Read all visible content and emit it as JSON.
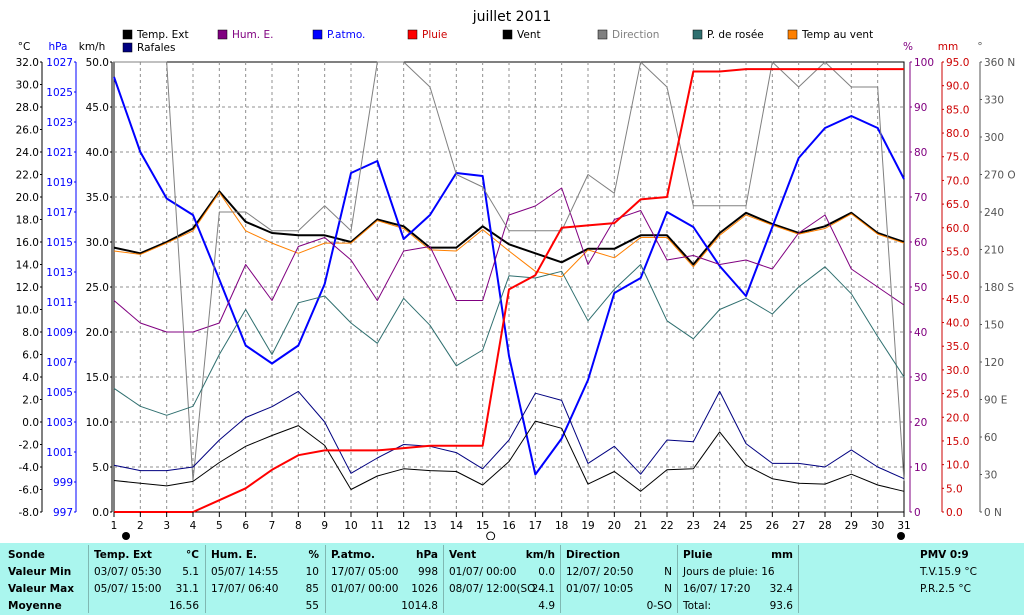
{
  "chart_data": {
    "type": "line",
    "title": "juillet 2011",
    "x": [
      1,
      2,
      3,
      4,
      5,
      6,
      7,
      8,
      9,
      10,
      11,
      12,
      13,
      14,
      15,
      16,
      17,
      18,
      19,
      20,
      21,
      22,
      23,
      24,
      25,
      26,
      27,
      28,
      29,
      30,
      31
    ],
    "x_ticks": [
      "1",
      "2",
      "3",
      "4",
      "5",
      "6",
      "7",
      "8",
      "9",
      "10",
      "11",
      "12",
      "13",
      "14",
      "15",
      "16",
      "17",
      "18",
      "19",
      "20",
      "21",
      "22",
      "23",
      "24",
      "25",
      "26",
      "27",
      "28",
      "29",
      "30",
      "31"
    ],
    "axes": {
      "temp": {
        "label": "°C",
        "range": [
          -8,
          32
        ],
        "ticks": [
          "32.0",
          "30.0",
          "28.0",
          "26.0",
          "24.0",
          "22.0",
          "20.0",
          "18.0",
          "16.0",
          "14.0",
          "12.0",
          "10.0",
          "8.0",
          "6.0",
          "4.0",
          "2.0",
          "0.0",
          "-2.0",
          "-4.0",
          "-6.0",
          "-8.0"
        ]
      },
      "pressure": {
        "label": "hPa",
        "range": [
          997,
          1027
        ],
        "ticks": [
          "1027",
          "1025",
          "1023",
          "1021",
          "1019",
          "1017",
          "1015",
          "1013",
          "1011",
          "1009",
          "1007",
          "1005",
          "1003",
          "1001",
          "999",
          "997"
        ]
      },
      "wind": {
        "label": "km/h",
        "range": [
          0,
          50
        ],
        "ticks": [
          "50.0",
          "45.0",
          "40.0",
          "35.0",
          "30.0",
          "25.0",
          "20.0",
          "15.0",
          "10.0",
          "5.0",
          "0.0"
        ]
      },
      "humidity": {
        "label": "%",
        "range": [
          0,
          100
        ],
        "ticks": [
          "100",
          "90",
          "80",
          "70",
          "60",
          "50",
          "40",
          "30",
          "20",
          "10",
          "0"
        ]
      },
      "rain": {
        "label": "mm",
        "range": [
          0,
          95
        ],
        "ticks": [
          "95.0",
          "90.0",
          "85.0",
          "80.0",
          "75.0",
          "70.0",
          "65.0",
          "60.0",
          "55.0",
          "50.0",
          "45.0",
          "40.0",
          "35.0",
          "30.0",
          "25.0",
          "20.0",
          "15.0",
          "10.0",
          "5.0",
          "0.0"
        ]
      },
      "direction": {
        "label": "°",
        "range": [
          0,
          360
        ],
        "ticks": [
          "360 N",
          "330",
          "300",
          "270 O",
          "240",
          "210",
          "180 S",
          "150",
          "120",
          "90 E",
          "60",
          "30",
          "0 N"
        ]
      }
    },
    "legend": [
      {
        "name": "Temp. Ext",
        "color": "#000000"
      },
      {
        "name": "Hum. E.",
        "color": "#800080"
      },
      {
        "name": "P.atmo.",
        "color": "#0000ff"
      },
      {
        "name": "Pluie",
        "color": "#ff0000"
      },
      {
        "name": "Vent",
        "color": "#000000"
      },
      {
        "name": "Direction",
        "color": "#808080"
      },
      {
        "name": "P. de rosée",
        "color": "#2f6f6f"
      },
      {
        "name": "Temp au vent",
        "color": "#ff8000"
      },
      {
        "name": "Rafales",
        "color": "#000080"
      }
    ],
    "series": [
      {
        "name": "Temp. Ext",
        "axis": "temp",
        "color": "#000000",
        "width": 2,
        "values": [
          15.5,
          15.0,
          16.0,
          17.2,
          20.5,
          17.8,
          16.8,
          16.6,
          16.6,
          16.0,
          18.0,
          17.4,
          15.5,
          15.5,
          17.4,
          15.8,
          15.0,
          14.2,
          15.4,
          15.4,
          16.6,
          16.6,
          14.0,
          16.8,
          18.6,
          17.6,
          16.8,
          17.4,
          18.6,
          16.8,
          16.0
        ]
      },
      {
        "name": "Temp au vent",
        "axis": "temp",
        "color": "#ff8000",
        "width": 1,
        "values": [
          15.2,
          14.9,
          15.9,
          17.0,
          20.4,
          17.0,
          15.9,
          15.0,
          15.9,
          15.9,
          17.9,
          17.2,
          15.3,
          15.2,
          17.1,
          15.2,
          13.4,
          12.9,
          15.3,
          14.6,
          16.4,
          16.4,
          13.8,
          16.6,
          18.4,
          17.5,
          16.7,
          17.2,
          18.5,
          16.7,
          15.9
        ]
      },
      {
        "name": "P.atmo.",
        "axis": "pressure",
        "color": "#0000ff",
        "width": 2,
        "values": [
          1026.0,
          1021.0,
          1017.9,
          1016.8,
          1012.5,
          1008.1,
          1006.9,
          1008.1,
          1012.2,
          1019.6,
          1020.4,
          1015.2,
          1016.8,
          1019.6,
          1019.4,
          1007.4,
          999.5,
          1001.9,
          1005.8,
          1011.6,
          1012.6,
          1017.0,
          1016.0,
          1013.4,
          1011.4,
          1016.0,
          1020.6,
          1022.6,
          1023.4,
          1022.6,
          1019.2
        ]
      },
      {
        "name": "Hum. E.",
        "axis": "humidity",
        "color": "#800080",
        "width": 1,
        "values": [
          47,
          42,
          40,
          40,
          42,
          55,
          47,
          59,
          61,
          56,
          47,
          58,
          59,
          47,
          47,
          66,
          68,
          72,
          55,
          65,
          67,
          56,
          57,
          55,
          56,
          54,
          62,
          66,
          54,
          50,
          46
        ]
      },
      {
        "name": "Direction",
        "axis": "direction",
        "color": "#808080",
        "width": 1,
        "values": [
          360,
          360,
          360,
          25,
          240,
          240,
          225,
          225,
          245,
          225,
          360,
          360,
          340,
          270,
          260,
          225,
          225,
          225,
          270,
          255,
          360,
          340,
          245,
          245,
          245,
          360,
          340,
          360,
          340,
          340,
          25
        ]
      },
      {
        "name": "P. de rosée",
        "axis": "temp",
        "color": "#2f6f6f",
        "width": 1,
        "values": [
          3.0,
          1.4,
          0.6,
          1.4,
          6.0,
          10.0,
          6.0,
          10.6,
          11.2,
          8.8,
          7.0,
          11.0,
          8.6,
          5.0,
          6.4,
          13.0,
          12.8,
          13.4,
          9.0,
          11.8,
          14.0,
          9.0,
          7.4,
          10.0,
          11.0,
          9.6,
          12.0,
          13.8,
          11.4,
          7.6,
          4.0
        ]
      },
      {
        "name": "Rafales",
        "axis": "wind",
        "color": "#000080",
        "width": 1,
        "values": [
          5.2,
          4.6,
          4.6,
          5.0,
          8.0,
          10.5,
          11.7,
          13.4,
          10.0,
          4.3,
          6.0,
          7.5,
          7.3,
          6.6,
          4.8,
          8.0,
          13.2,
          12.4,
          5.4,
          7.3,
          4.2,
          8.0,
          7.8,
          13.4,
          7.6,
          5.4,
          5.4,
          5.0,
          6.9,
          5.0,
          3.7
        ]
      },
      {
        "name": "Vent",
        "axis": "wind",
        "color": "#000000",
        "width": 1,
        "values": [
          3.5,
          3.2,
          2.9,
          3.4,
          5.5,
          7.3,
          8.5,
          9.6,
          7.4,
          2.5,
          4.0,
          4.8,
          4.6,
          4.5,
          3.0,
          5.6,
          10.1,
          9.3,
          3.1,
          4.5,
          2.3,
          4.7,
          4.8,
          8.9,
          5.2,
          3.7,
          3.2,
          3.1,
          4.2,
          3.0,
          2.3
        ]
      },
      {
        "name": "Pluie",
        "axis": "rain",
        "color": "#ff0000",
        "width": 2,
        "values": [
          0,
          0,
          0,
          0,
          2.5,
          5.0,
          8.9,
          12.0,
          13.0,
          13.0,
          13.0,
          13.5,
          14.0,
          14.0,
          14.0,
          47.0,
          50.0,
          60.0,
          60.5,
          61.0,
          66.0,
          66.5,
          93.0,
          93.0,
          93.5,
          93.5,
          93.5,
          93.5,
          93.5,
          93.5,
          93.5
        ]
      }
    ]
  },
  "footer": {
    "sonde": {
      "title": "Sonde",
      "rows": [
        "Valeur Min",
        "Valeur Max",
        "Moyenne"
      ]
    },
    "temp": {
      "title": "Temp. Ext",
      "unit": "°C",
      "min_date": "03/07/  05:30",
      "min_val": "5.1",
      "max_date": "05/07/  15:00",
      "max_val": "31.1",
      "avg": "16.56"
    },
    "hum": {
      "title": "Hum. E.",
      "unit": "%",
      "min_date": "05/07/  14:55",
      "min_val": "10",
      "max_date": "17/07/  06:40",
      "max_val": "85",
      "avg": "55"
    },
    "press": {
      "title": "P.atmo.",
      "unit": "hPa",
      "min_date": "17/07/  05:00",
      "min_val": "998",
      "max_date": "01/07/  00:00",
      "max_val": "1026",
      "avg": "1014.8"
    },
    "vent": {
      "title": "Vent",
      "unit": "km/h",
      "min_date": "01/07/  00:00",
      "min_val": "0.0",
      "max_date": "08/07/  12:00(SO",
      "max_val": "24.1",
      "avg": "4.9"
    },
    "direction": {
      "title": "Direction",
      "min_date": "12/07/  20:50",
      "min_val": "N",
      "max_date": "01/07/  10:05",
      "max_val": "N",
      "avg": "0-SO"
    },
    "pluie": {
      "title": "Pluie",
      "unit": "mm",
      "row1": "Jours de pluie: 16",
      "row2_date": "16/07/  17:20",
      "row2_val": "32.4",
      "row3_label": "Total:",
      "row3_val": "93.6"
    },
    "pmv": {
      "title": "PMV 0:9",
      "tv": "T.V.15.9 °C",
      "pr": "P.R.2.5 °C"
    }
  }
}
